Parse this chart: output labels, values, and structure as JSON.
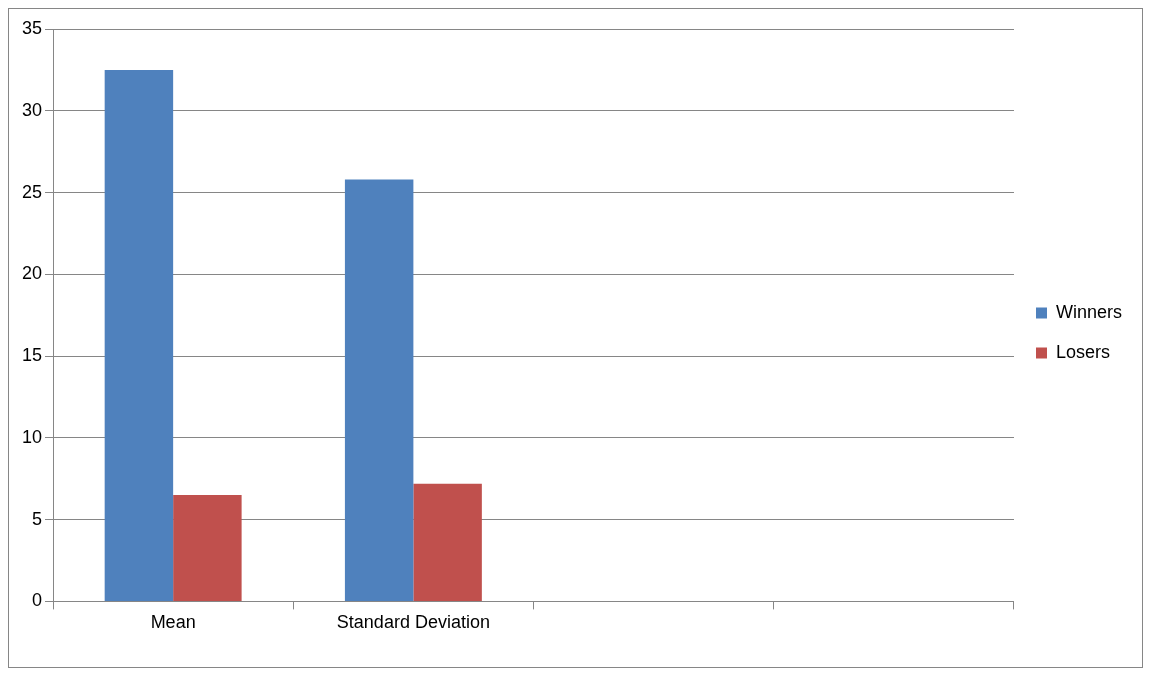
{
  "chart_data": {
    "type": "bar",
    "categories": [
      "Mean",
      "Standard Deviation",
      null,
      null
    ],
    "series": [
      {
        "name": "Winners",
        "color": "#4f81bd",
        "values": [
          32.5,
          25.8,
          null,
          null
        ]
      },
      {
        "name": "Losers",
        "color": "#c0504d",
        "values": [
          6.5,
          7.2,
          null,
          null
        ]
      }
    ],
    "ylim": [
      0,
      35
    ],
    "yticks": [
      0,
      5,
      10,
      15,
      20,
      25,
      30,
      35
    ],
    "grid": "y",
    "legend": "right"
  }
}
